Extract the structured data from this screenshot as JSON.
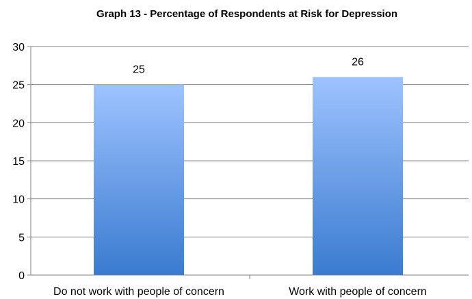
{
  "chart_data": {
    "type": "bar",
    "title": "Graph 13 - Percentage of Respondents at Risk for Depression",
    "xlabel": "",
    "ylabel": "",
    "categories": [
      "Do not work with people of concern",
      "Work with people of concern"
    ],
    "values": [
      25,
      26
    ],
    "data_labels": [
      "25",
      "26"
    ],
    "ylim": [
      0,
      30
    ],
    "yticks": [
      0,
      5,
      10,
      15,
      20,
      25,
      30
    ],
    "ytick_labels": [
      "0",
      "5",
      "10",
      "15",
      "20",
      "25",
      "30"
    ],
    "grid": true,
    "legend": "none",
    "bar_color_top": "#9ec3ff",
    "bar_color_bottom": "#3a7bd0",
    "grid_color": "#808080"
  }
}
